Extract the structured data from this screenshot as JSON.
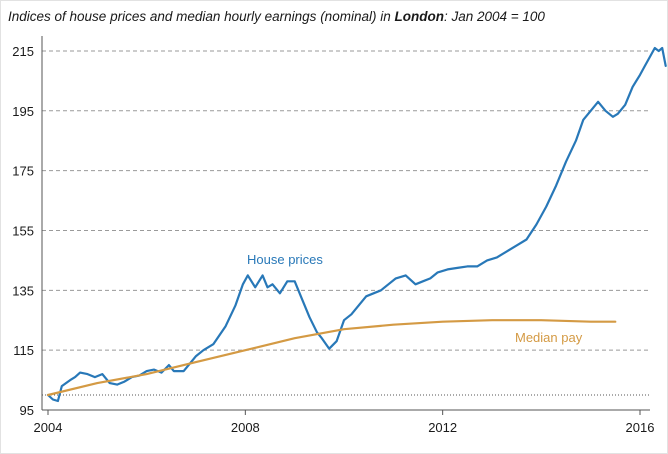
{
  "chart_data": {
    "type": "line",
    "title_pre": "Indices of house prices and median hourly earnings (nominal) in ",
    "title_bold": "London",
    "title_post": ":  Jan 2004 = 100",
    "xlim": [
      2004,
      2016.1
    ],
    "ylim": [
      95,
      220
    ],
    "x_ticks": [
      2004,
      2008,
      2012,
      2016
    ],
    "x_tick_labels": [
      "2004",
      "2008",
      "2012",
      "2016"
    ],
    "y_ticks": [
      95,
      115,
      135,
      155,
      175,
      195,
      215
    ],
    "y_tick_labels": [
      "95",
      "115",
      "135",
      "155",
      "175",
      "195",
      "215"
    ],
    "grid": "horizontal dashed",
    "baseline": 100,
    "colors": {
      "house_prices": "#2878b8",
      "median_pay": "#d49a44",
      "grid": "#9a9a9a",
      "axis": "#555555"
    },
    "series": [
      {
        "name": "House prices",
        "color": "#2878b8",
        "label_x": 2008,
        "label_y": 143,
        "points": [
          [
            2004.0,
            100
          ],
          [
            2004.1,
            98.5
          ],
          [
            2004.2,
            98
          ],
          [
            2004.28,
            103
          ],
          [
            2004.45,
            105
          ],
          [
            2004.55,
            106
          ],
          [
            2004.65,
            107.5
          ],
          [
            2004.8,
            107
          ],
          [
            2004.95,
            106
          ],
          [
            2005.1,
            107
          ],
          [
            2005.25,
            104
          ],
          [
            2005.4,
            103.5
          ],
          [
            2005.55,
            104.5
          ],
          [
            2005.7,
            106
          ],
          [
            2005.85,
            106.5
          ],
          [
            2006.0,
            108
          ],
          [
            2006.15,
            108.5
          ],
          [
            2006.3,
            107.5
          ],
          [
            2006.45,
            110
          ],
          [
            2006.55,
            108
          ],
          [
            2006.75,
            108
          ],
          [
            2006.9,
            111
          ],
          [
            2007.0,
            113
          ],
          [
            2007.15,
            115
          ],
          [
            2007.35,
            117
          ],
          [
            2007.6,
            123
          ],
          [
            2007.8,
            130
          ],
          [
            2007.95,
            137
          ],
          [
            2008.05,
            140
          ],
          [
            2008.2,
            136
          ],
          [
            2008.35,
            140
          ],
          [
            2008.45,
            136
          ],
          [
            2008.55,
            137
          ],
          [
            2008.7,
            134
          ],
          [
            2008.85,
            138
          ],
          [
            2009.0,
            138
          ],
          [
            2009.15,
            132
          ],
          [
            2009.3,
            126
          ],
          [
            2009.45,
            121
          ],
          [
            2009.55,
            119
          ],
          [
            2009.7,
            115.5
          ],
          [
            2009.85,
            118
          ],
          [
            2010.0,
            125
          ],
          [
            2010.15,
            127
          ],
          [
            2010.3,
            130
          ],
          [
            2010.45,
            133
          ],
          [
            2010.6,
            134
          ],
          [
            2010.75,
            135
          ],
          [
            2010.9,
            137
          ],
          [
            2011.05,
            139
          ],
          [
            2011.25,
            140
          ],
          [
            2011.45,
            137
          ],
          [
            2011.6,
            138
          ],
          [
            2011.75,
            139
          ],
          [
            2011.9,
            141
          ],
          [
            2012.1,
            142
          ],
          [
            2012.3,
            142.5
          ],
          [
            2012.5,
            143
          ],
          [
            2012.7,
            143
          ],
          [
            2012.9,
            145
          ],
          [
            2013.1,
            146
          ],
          [
            2013.3,
            148
          ],
          [
            2013.5,
            150
          ],
          [
            2013.7,
            152
          ],
          [
            2013.9,
            157
          ],
          [
            2014.1,
            163
          ],
          [
            2014.3,
            170
          ],
          [
            2014.5,
            178
          ],
          [
            2014.7,
            185
          ],
          [
            2014.85,
            192
          ],
          [
            2015.0,
            195
          ],
          [
            2015.15,
            198
          ],
          [
            2015.3,
            195
          ],
          [
            2015.45,
            193
          ],
          [
            2015.55,
            194
          ],
          [
            2015.7,
            197
          ],
          [
            2015.85,
            203
          ],
          [
            2016.0,
            207
          ],
          [
            2016.1,
            210
          ],
          [
            2016.2,
            213
          ],
          [
            2016.3,
            216
          ],
          [
            2016.38,
            215
          ],
          [
            2016.45,
            216
          ],
          [
            2016.52,
            210
          ]
        ]
      },
      {
        "name": "Median pay",
        "color": "#d49a44",
        "label_x": 2010.6,
        "label_y": 118,
        "points": [
          [
            2004.0,
            100
          ],
          [
            2005.0,
            104
          ],
          [
            2006.0,
            107
          ],
          [
            2007.0,
            111
          ],
          [
            2008.0,
            115
          ],
          [
            2009.0,
            119
          ],
          [
            2010.0,
            122
          ],
          [
            2011.0,
            123.5
          ],
          [
            2012.0,
            124.5
          ],
          [
            2013.0,
            125
          ],
          [
            2014.0,
            125
          ],
          [
            2015.0,
            124.5
          ],
          [
            2015.5,
            124.5
          ]
        ]
      }
    ]
  }
}
